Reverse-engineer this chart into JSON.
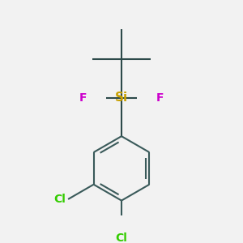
{
  "background_color": "#f2f2f2",
  "bond_color": "#2d4a4a",
  "ring_bond_color": "#3a5a5a",
  "bond_width": 1.5,
  "si_color": "#c8a000",
  "f_color": "#cc00cc",
  "cl_color": "#33cc00",
  "si_label": "Si",
  "f_label": "F",
  "cl_label": "Cl",
  "si_fontsize": 11,
  "f_fontsize": 10,
  "cl_fontsize": 10,
  "figsize": [
    3.0,
    3.0
  ],
  "dpi": 100,
  "xlim": [
    -1.6,
    1.6
  ],
  "ylim": [
    -2.2,
    1.8
  ]
}
